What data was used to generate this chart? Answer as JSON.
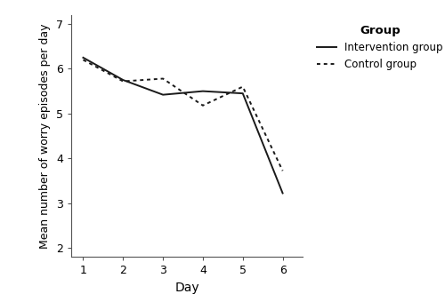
{
  "days": [
    1,
    2,
    3,
    4,
    5,
    6
  ],
  "intervention": [
    6.25,
    5.75,
    5.42,
    5.5,
    5.45,
    3.22
  ],
  "control": [
    6.2,
    5.72,
    5.78,
    5.18,
    5.6,
    3.72
  ],
  "intervention_label": "Intervention group",
  "control_label": "Control group",
  "group_title": "Group",
  "xlabel": "Day",
  "ylabel": "Mean number of worry episodes per day",
  "ylim": [
    1.8,
    7.2
  ],
  "xlim": [
    0.7,
    6.5
  ],
  "yticks": [
    2,
    3,
    4,
    5,
    6,
    7
  ],
  "xticks": [
    1,
    2,
    3,
    4,
    5,
    6
  ],
  "line_color": "#1a1a1a",
  "intervention_linestyle": "solid",
  "control_linestyle": "dotted",
  "linewidth": 1.4,
  "background_color": "#ffffff",
  "legend_fontsize": 8.5,
  "legend_title_fontsize": 9.5,
  "axis_label_fontsize": 10,
  "ylabel_fontsize": 9,
  "tick_fontsize": 9
}
